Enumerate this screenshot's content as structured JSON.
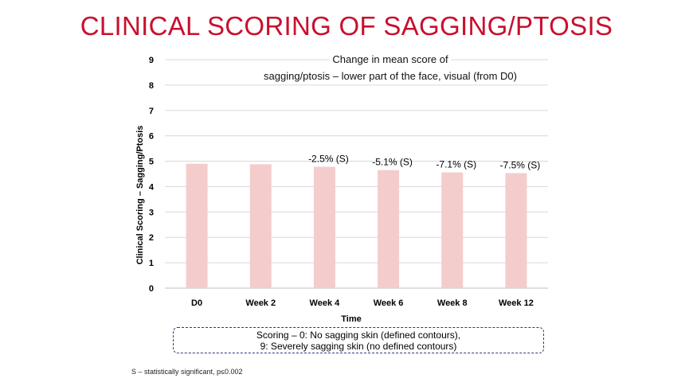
{
  "page": {
    "title": "CLINICAL SCORING OF SAGGING/PTOSIS",
    "footnote": "S – statistically significant, p≤0.002"
  },
  "scoring_note": {
    "line1": "Scoring – 0: No sagging skin (defined contours),",
    "line2": "9: Severely sagging skin (no defined contours)"
  },
  "colors": {
    "title": "#c8102e",
    "bar": "#f4cccc",
    "grid": "#d9d9d9",
    "box_border": "#2f3a7a"
  },
  "chart_data": {
    "type": "bar",
    "title_line1": "Change in mean score of",
    "title_line2": "sagging/ptosis – lower part of the face, visual (from D0)",
    "xlabel": "Time",
    "ylabel": "Clinical Scoring – Sagging/Ptosis",
    "categories": [
      "D0",
      "Week 2",
      "Week 4",
      "Week 6",
      "Week 8",
      "Week 12"
    ],
    "values": [
      4.9,
      4.88,
      4.78,
      4.65,
      4.56,
      4.53
    ],
    "data_labels": [
      "",
      "",
      "-2.5% (S)",
      "-5.1% (S)",
      "-7.1% (S)",
      "-7.5% (S)"
    ],
    "ylim": [
      0,
      9
    ],
    "yticks": [
      0,
      1,
      2,
      3,
      4,
      5,
      6,
      7,
      8,
      9
    ],
    "grid": true,
    "legend": "none"
  }
}
